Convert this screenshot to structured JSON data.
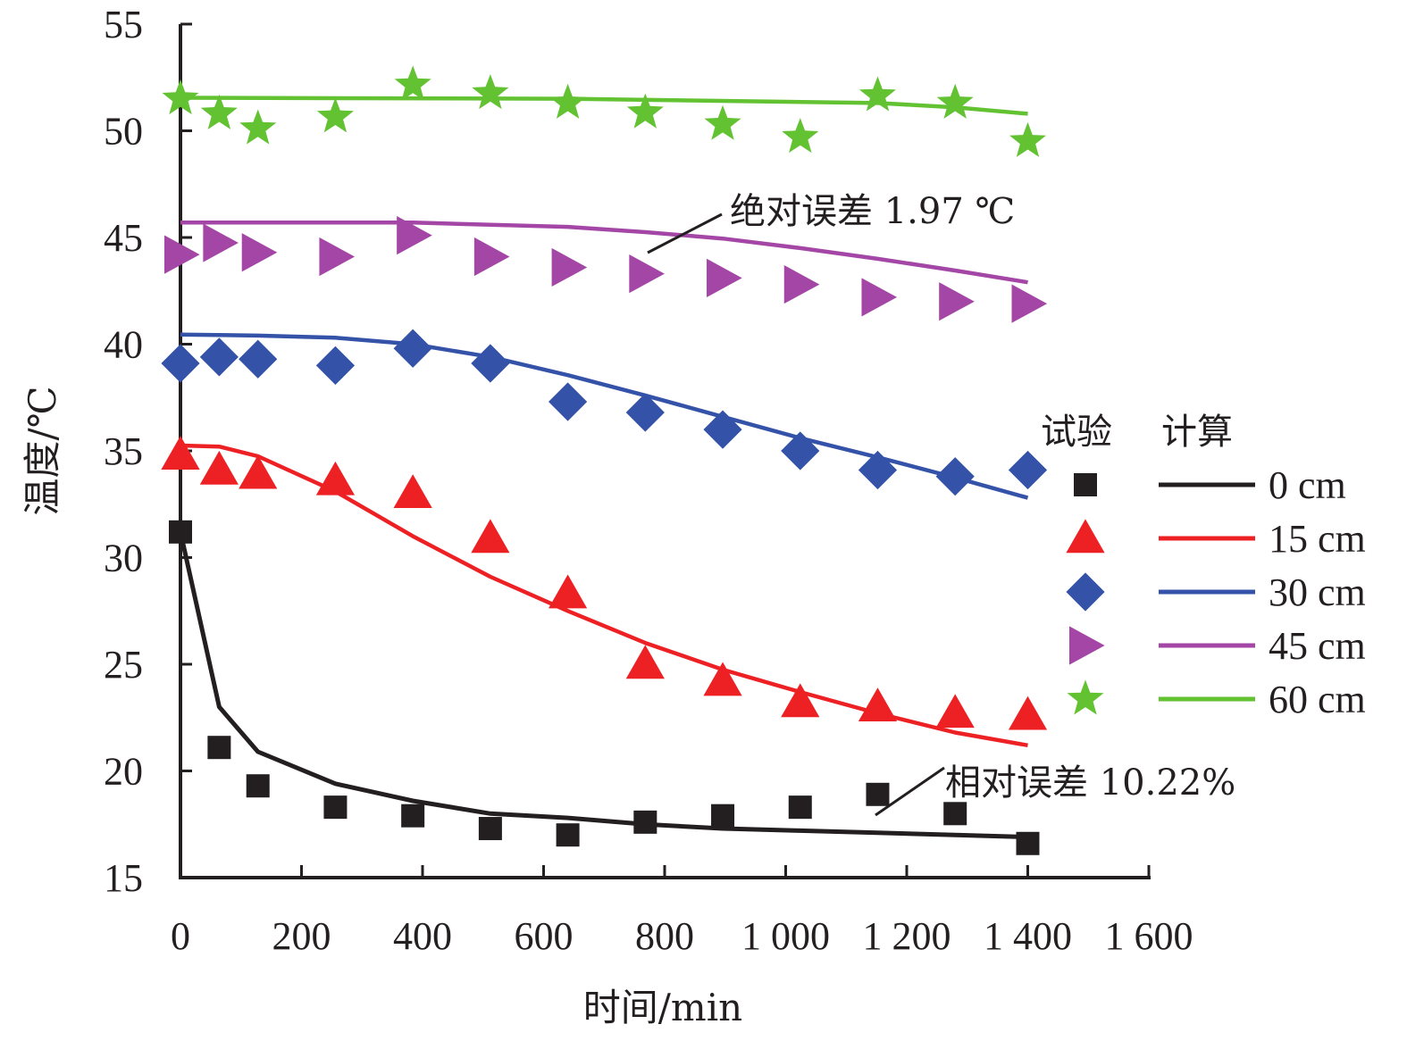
{
  "chart_data": {
    "type": "line",
    "title": "",
    "xlabel": "时间/min",
    "ylabel": "温度/℃",
    "xlim": [
      0,
      1600
    ],
    "ylim": [
      15,
      55
    ],
    "x_ticks": [
      0,
      200,
      400,
      600,
      800,
      1000,
      1200,
      1400,
      1600
    ],
    "x_tick_labels": [
      "0",
      "200",
      "400",
      "600",
      "800",
      "1 000",
      "1 200",
      "1 400",
      "1 600"
    ],
    "y_ticks": [
      15,
      20,
      25,
      30,
      35,
      40,
      45,
      50,
      55
    ],
    "y_tick_labels": [
      "15",
      "20",
      "25",
      "30",
      "35",
      "40",
      "45",
      "50",
      "55"
    ],
    "grid": false,
    "legend": {
      "placement": "right",
      "header_test": "试验",
      "header_calc": "计算"
    },
    "annotations": [
      {
        "text": "绝对误差 1.97 ℃",
        "target_series": "45 cm",
        "target_x": 780
      },
      {
        "text": "相对误差 10.22%",
        "target_series": "0 cm",
        "target_x": 1150
      }
    ],
    "test_x": [
      0,
      64,
      128,
      256,
      384,
      512,
      640,
      768,
      896,
      1024,
      1152,
      1280,
      1400
    ],
    "series": [
      {
        "name": "0 cm",
        "color": "#231f20",
        "marker": "square",
        "test": [
          31.2,
          21.1,
          19.3,
          18.3,
          17.9,
          17.3,
          17.0,
          17.6,
          17.9,
          18.3,
          18.9,
          18.0,
          16.6
        ],
        "calc_x": [
          0,
          64,
          128,
          256,
          384,
          512,
          640,
          768,
          896,
          1024,
          1152,
          1280,
          1400
        ],
        "calc": [
          31.2,
          23.0,
          20.9,
          19.4,
          18.6,
          18.0,
          17.8,
          17.5,
          17.3,
          17.2,
          17.1,
          17.0,
          16.9
        ]
      },
      {
        "name": "15 cm",
        "color": "#ed2024",
        "marker": "triangle-up",
        "test": [
          34.8,
          34.1,
          33.9,
          33.6,
          33.0,
          30.9,
          28.3,
          25.0,
          24.2,
          23.2,
          23.0,
          22.7,
          22.6
        ],
        "calc_x": [
          0,
          64,
          128,
          256,
          384,
          512,
          640,
          768,
          896,
          1024,
          1152,
          1280,
          1400
        ],
        "calc": [
          35.25,
          35.2,
          34.75,
          33.1,
          31.0,
          29.1,
          27.5,
          26.0,
          24.75,
          23.7,
          22.7,
          21.8,
          21.2
        ]
      },
      {
        "name": "30 cm",
        "color": "#3352a8",
        "marker": "diamond",
        "test": [
          39.1,
          39.4,
          39.3,
          39.0,
          39.8,
          39.1,
          37.3,
          36.8,
          36.0,
          35.0,
          34.1,
          33.8,
          34.1
        ],
        "calc_x": [
          0,
          128,
          256,
          384,
          512,
          640,
          768,
          896,
          1024,
          1152,
          1280,
          1400
        ],
        "calc": [
          40.45,
          40.4,
          40.3,
          40.0,
          39.4,
          38.55,
          37.6,
          36.6,
          35.6,
          34.7,
          33.75,
          32.8
        ]
      },
      {
        "name": "45 cm",
        "color": "#a346a6",
        "marker": "triangle-right",
        "test": [
          44.2,
          44.75,
          44.3,
          44.1,
          45.1,
          44.1,
          43.6,
          43.3,
          43.1,
          42.8,
          42.2,
          42.0,
          41.9
        ],
        "calc_x": [
          0,
          384,
          512,
          640,
          768,
          896,
          1024,
          1152,
          1280,
          1400
        ],
        "calc": [
          45.7,
          45.7,
          45.6,
          45.5,
          45.25,
          44.95,
          44.5,
          44.0,
          43.45,
          42.9
        ]
      },
      {
        "name": "60 cm",
        "color": "#62c232",
        "marker": "star",
        "test": [
          51.5,
          50.8,
          50.1,
          50.65,
          52.15,
          51.75,
          51.3,
          50.85,
          50.3,
          49.7,
          51.65,
          51.3,
          49.5
        ],
        "calc_x": [
          0,
          640,
          1152,
          1280,
          1400
        ],
        "calc": [
          51.55,
          51.5,
          51.3,
          51.1,
          50.8
        ]
      }
    ]
  }
}
